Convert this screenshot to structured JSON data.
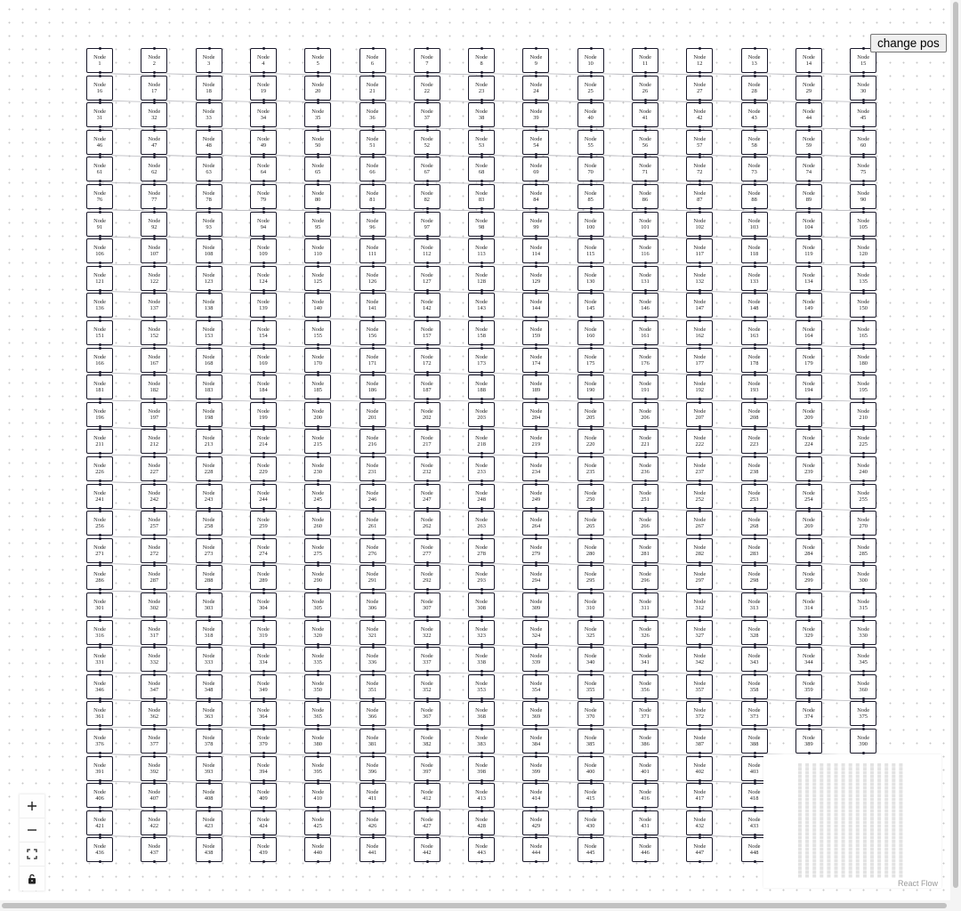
{
  "toolbar": {
    "change_pos_label": "change pos"
  },
  "flow": {
    "node_prefix": "Node",
    "node_count": 450,
    "columns": 15,
    "colors": {
      "node_border": "#1a192b",
      "edge": "#b1b1b7",
      "handle": "#1a192b",
      "minimap_node": "#e2e2e2"
    }
  },
  "controls": [
    {
      "name": "zoom-in-button",
      "icon": "plus-icon"
    },
    {
      "name": "zoom-out-button",
      "icon": "minus-icon"
    },
    {
      "name": "fit-view-button",
      "icon": "fit-view-icon"
    },
    {
      "name": "interactivity-toggle-button",
      "icon": "lock-icon"
    }
  ],
  "attribution": {
    "label": "React Flow"
  }
}
